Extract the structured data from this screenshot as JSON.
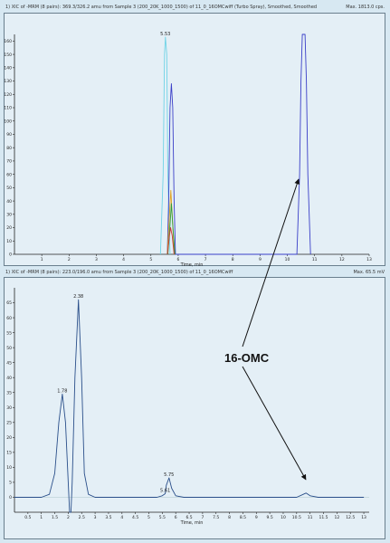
{
  "chart_data": [
    {
      "type": "line",
      "header_left": "1) XIC of -MRM (8 pairs): 369.3/326.2 amu from Sample 3 (200_20K_1000_1500) of 11_0_16OMCwiff (Turbo Spray), Smoothed, Smoothed",
      "header_right": "Max. 1813.0 cps.",
      "xlabel": "Time, min",
      "xlim": [
        0,
        13
      ],
      "ylim": [
        0,
        165
      ],
      "xticks": [
        1,
        2,
        3,
        4,
        5,
        6,
        7,
        8,
        9,
        10,
        11,
        12,
        13
      ],
      "yticks": [
        0,
        10,
        20,
        30,
        40,
        50,
        60,
        70,
        80,
        90,
        100,
        110,
        120,
        130,
        140,
        150,
        160
      ],
      "annotations": [
        {
          "text": "5.53",
          "x": 5.53,
          "y": 163
        }
      ],
      "series": [
        {
          "color": "#6fd3e6",
          "points": [
            [
              5.35,
              0
            ],
            [
              5.45,
              60
            ],
            [
              5.5,
              150
            ],
            [
              5.53,
              163
            ],
            [
              5.58,
              150
            ],
            [
              5.62,
              60
            ],
            [
              5.7,
              0
            ]
          ]
        },
        {
          "color": "#3a3fc8",
          "points": [
            [
              5.6,
              0
            ],
            [
              5.65,
              40
            ],
            [
              5.7,
              110
            ],
            [
              5.75,
              128
            ],
            [
              5.8,
              110
            ],
            [
              5.85,
              40
            ],
            [
              5.9,
              0
            ],
            [
              10.35,
              0
            ],
            [
              10.45,
              60
            ],
            [
              10.5,
              130
            ],
            [
              10.55,
              165
            ],
            [
              10.65,
              165
            ],
            [
              10.7,
              130
            ],
            [
              10.75,
              60
            ],
            [
              10.85,
              0
            ]
          ]
        },
        {
          "color": "#e0a020",
          "points": [
            [
              5.6,
              0
            ],
            [
              5.68,
              30
            ],
            [
              5.73,
              48
            ],
            [
              5.78,
              30
            ],
            [
              5.85,
              0
            ]
          ]
        },
        {
          "color": "#2e9c3a",
          "points": [
            [
              5.62,
              0
            ],
            [
              5.7,
              22
            ],
            [
              5.75,
              38
            ],
            [
              5.8,
              22
            ],
            [
              5.88,
              0
            ]
          ]
        },
        {
          "color": "#c83a3a",
          "points": [
            [
              5.6,
              0
            ],
            [
              5.68,
              14
            ],
            [
              5.72,
              20
            ],
            [
              5.78,
              14
            ],
            [
              5.85,
              0
            ]
          ]
        }
      ]
    },
    {
      "type": "line",
      "header_left": "1) XIC of -MRM (8 pairs): 223.0/196.0 amu from Sample 3 (200_20K_1000_1500) of 11_0_16OMCwiff",
      "header_right": "Max. 65.5 mV",
      "xlabel": "Time, min",
      "xlim": [
        0,
        13.2
      ],
      "ylim": [
        -5,
        70
      ],
      "xticks": [
        0.5,
        1.0,
        1.5,
        2.0,
        2.5,
        3.0,
        3.5,
        4.0,
        4.5,
        5.0,
        5.5,
        6.0,
        6.5,
        7.0,
        7.5,
        8.0,
        8.5,
        9.0,
        9.5,
        10.0,
        10.5,
        11.0,
        11.5,
        12.0,
        12.5,
        13.0
      ],
      "yticks": [
        0,
        5,
        10,
        15,
        20,
        25,
        30,
        35,
        40,
        45,
        50,
        55,
        60,
        65
      ],
      "annotations": [
        {
          "text": "1.78",
          "x": 1.78,
          "y": 34.5
        },
        {
          "text": "2.38",
          "x": 2.38,
          "y": 66
        },
        {
          "text": "5.61",
          "x": 5.61,
          "y": 1.2
        },
        {
          "text": "5.75",
          "x": 5.75,
          "y": 6.5
        }
      ],
      "series": [
        {
          "color": "#2a4f8a",
          "points": [
            [
              0,
              0
            ],
            [
              1.0,
              0
            ],
            [
              1.3,
              1
            ],
            [
              1.5,
              8
            ],
            [
              1.65,
              25
            ],
            [
              1.78,
              34.5
            ],
            [
              1.9,
              25
            ],
            [
              2.0,
              5
            ],
            [
              2.05,
              -5
            ],
            [
              2.1,
              -5
            ],
            [
              2.15,
              5
            ],
            [
              2.25,
              40
            ],
            [
              2.38,
              66
            ],
            [
              2.5,
              40
            ],
            [
              2.6,
              8
            ],
            [
              2.75,
              1
            ],
            [
              3.0,
              0
            ],
            [
              5.3,
              0
            ],
            [
              5.5,
              0.5
            ],
            [
              5.61,
              1.2
            ],
            [
              5.65,
              4
            ],
            [
              5.75,
              6.5
            ],
            [
              5.85,
              3
            ],
            [
              6.0,
              0.5
            ],
            [
              6.3,
              0
            ],
            [
              10.5,
              0
            ],
            [
              10.7,
              0.8
            ],
            [
              10.85,
              1.4
            ],
            [
              11.0,
              0.5
            ],
            [
              11.3,
              0
            ],
            [
              13.0,
              0
            ]
          ]
        }
      ]
    }
  ],
  "callout_label": "16-OMC"
}
